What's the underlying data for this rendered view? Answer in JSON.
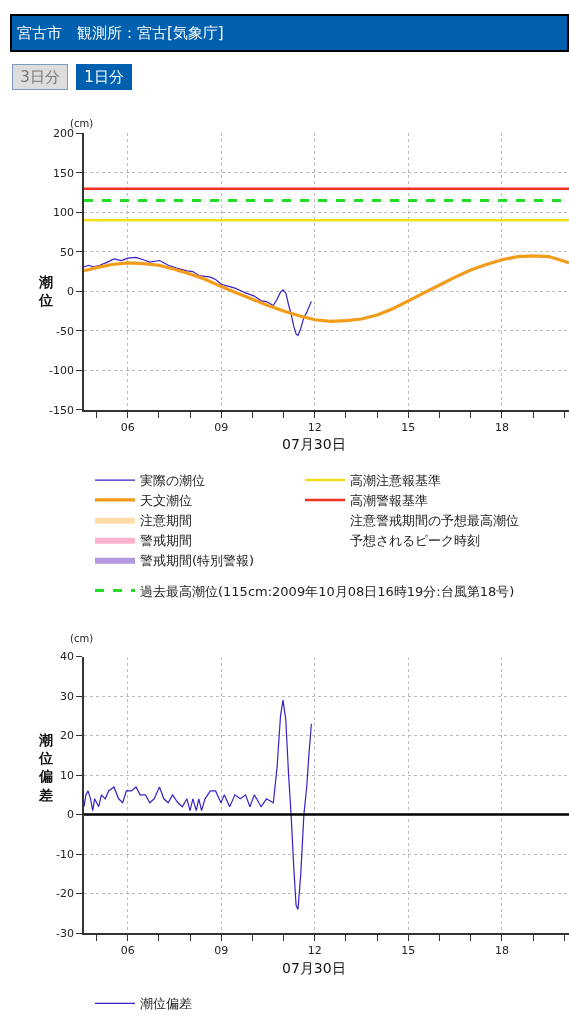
{
  "chart_data": [
    {
      "type": "line",
      "title": "宮古市　観測所：宮古[気象庁]",
      "annotations": [
        "3日分",
        "1日分",
        "(cm)"
      ],
      "xlabel": "07月30日",
      "ylabel": "潮位",
      "legend": "bottom",
      "xlim": [
        4.6,
        20.15
      ],
      "xticks": [
        {
          "value": 5,
          "label": null
        },
        {
          "value": 6,
          "label": "06"
        },
        {
          "value": 7,
          "label": null
        },
        {
          "value": 8,
          "label": null
        },
        {
          "value": 9,
          "label": "09"
        },
        {
          "value": 10,
          "label": null
        },
        {
          "value": 11,
          "label": null
        },
        {
          "value": 12,
          "label": "12"
        },
        {
          "value": 13,
          "label": null
        },
        {
          "value": 14,
          "label": null
        },
        {
          "value": 15,
          "label": "15"
        },
        {
          "value": 16,
          "label": null
        },
        {
          "value": 17,
          "label": null
        },
        {
          "value": 18,
          "label": "18"
        },
        {
          "value": 19,
          "label": null
        },
        {
          "value": 20,
          "label": null
        }
      ],
      "ylim": [
        -150,
        200
      ],
      "yticks": [
        -150,
        -100,
        -50,
        0,
        50,
        100,
        150,
        200
      ],
      "grid": true,
      "series": [
        {
          "name": "実際の潮位",
          "color": "#3b1fc4",
          "x": [
            4.6,
            4.75,
            4.9,
            5.1,
            5.3,
            5.56,
            5.8,
            6.0,
            6.27,
            6.5,
            6.71,
            7.02,
            7.3,
            7.6,
            7.9,
            8.09,
            8.28,
            8.48,
            8.65,
            8.82,
            9.0,
            9.27,
            9.44,
            9.61,
            9.78,
            10.06,
            10.28,
            10.45,
            10.67,
            10.79,
            10.9,
            10.98,
            11.07,
            11.16,
            11.24,
            11.33,
            11.4,
            11.46,
            11.55,
            11.65,
            11.74,
            11.81,
            11.89
          ],
          "values": [
            31,
            33,
            31,
            33,
            36,
            41,
            39,
            42,
            43,
            40,
            37,
            39,
            33,
            29,
            26,
            25,
            20,
            19,
            18,
            15,
            9,
            6,
            4,
            1,
            -2,
            -6,
            -12,
            -13,
            -18,
            -10,
            -1,
            2,
            -2,
            -17,
            -29,
            -45,
            -54,
            -56,
            -47,
            -33,
            -27,
            -20,
            -13
          ]
        },
        {
          "name": "天文潮位",
          "color": "#f39c1a",
          "x": [
            4.6,
            5.0,
            5.5,
            6.0,
            6.5,
            7.0,
            7.5,
            8.0,
            8.5,
            9.0,
            9.5,
            10.0,
            10.5,
            11.0,
            11.5,
            12.0,
            12.5,
            13.0,
            13.5,
            14.0,
            14.5,
            15.0,
            15.5,
            16.0,
            16.5,
            17.0,
            17.5,
            18.0,
            18.5,
            19.0,
            19.5,
            20.0,
            20.15
          ],
          "values": [
            26,
            30,
            34,
            36,
            35,
            33,
            28,
            22,
            15,
            6,
            -2,
            -10,
            -18,
            -25,
            -31,
            -36,
            -38,
            -37,
            -35,
            -30,
            -22,
            -12,
            -2,
            8,
            18,
            27,
            34,
            40,
            44,
            45,
            44,
            38,
            36
          ]
        },
        {
          "name": "注意期間",
          "type": "area",
          "color": "#ffdcaa"
        },
        {
          "name": "警戒期間",
          "type": "area",
          "color": "#ffb0cc"
        },
        {
          "name": "警戒期間(特別警報)",
          "type": "area",
          "color": "#b399e0"
        },
        {
          "name": "注意警戒期間の予想最高潮位",
          "type": "scatter"
        },
        {
          "name": "予想されるピーク時刻",
          "type": "scatter"
        }
      ],
      "ref_lines": [
        {
          "axis": "y",
          "value": 90,
          "label": "高潮注意報基準",
          "color": "#f0e020"
        },
        {
          "axis": "y",
          "value": 130,
          "label": "高潮警報基準",
          "color": "#ee3322"
        },
        {
          "axis": "y",
          "value": 115,
          "label": "過去最高潮位(115cm:2009年10月08日16時19分:台風第18号)",
          "color": "#22dd22",
          "line_style": "dashed"
        }
      ]
    },
    {
      "type": "line",
      "annotations": [
        "(cm)"
      ],
      "xlabel": "07月30日",
      "ylabel": "潮位偏差",
      "legend": "bottom",
      "xlim": [
        4.6,
        20.15
      ],
      "xticks": [
        {
          "value": 5,
          "label": null
        },
        {
          "value": 6,
          "label": "06"
        },
        {
          "value": 7,
          "label": null
        },
        {
          "value": 8,
          "label": null
        },
        {
          "value": 9,
          "label": "09"
        },
        {
          "value": 10,
          "label": null
        },
        {
          "value": 11,
          "label": null
        },
        {
          "value": 12,
          "label": "12"
        },
        {
          "value": 13,
          "label": null
        },
        {
          "value": 14,
          "label": null
        },
        {
          "value": 15,
          "label": "15"
        },
        {
          "value": 16,
          "label": null
        },
        {
          "value": 17,
          "label": null
        },
        {
          "value": 18,
          "label": "18"
        },
        {
          "value": 19,
          "label": null
        },
        {
          "value": 20,
          "label": null
        }
      ],
      "ylim": [
        -30,
        40
      ],
      "yticks": [
        -30,
        -20,
        -10,
        0,
        10,
        20,
        30,
        40
      ],
      "grid": true,
      "series": [
        {
          "name": "潮位偏差",
          "color": "#3b1fc4",
          "x": [
            4.6,
            4.66,
            4.73,
            4.81,
            4.88,
            4.94,
            5.07,
            5.16,
            5.28,
            5.39,
            5.56,
            5.71,
            5.84,
            5.96,
            6.12,
            6.27,
            6.4,
            6.57,
            6.71,
            6.85,
            7.02,
            7.16,
            7.3,
            7.44,
            7.61,
            7.75,
            7.9,
            8.0,
            8.09,
            8.2,
            8.28,
            8.37,
            8.48,
            8.65,
            8.82,
            8.99,
            9.1,
            9.27,
            9.44,
            9.61,
            9.78,
            9.92,
            10.06,
            10.28,
            10.45,
            10.67,
            10.79,
            10.9,
            10.98,
            11.07,
            11.16,
            11.24,
            11.33,
            11.4,
            11.46,
            11.55,
            11.65,
            11.74,
            11.81,
            11.89
          ],
          "values": [
            2,
            5,
            6,
            4,
            1,
            4,
            2,
            5,
            4,
            6,
            7,
            4,
            3,
            6,
            6,
            7,
            5,
            5,
            3,
            4,
            7,
            4,
            3,
            5,
            3,
            2,
            4,
            1,
            4,
            1,
            4,
            1,
            4,
            6,
            6,
            3,
            5,
            2,
            5,
            4,
            5,
            2,
            5,
            2,
            4,
            3,
            12,
            25,
            29,
            24,
            10,
            0,
            -14,
            -23,
            -24,
            -15,
            0,
            7,
            15,
            23
          ]
        }
      ],
      "ref_lines": [
        {
          "axis": "y",
          "value": 0,
          "color": "#000000"
        }
      ]
    }
  ]
}
